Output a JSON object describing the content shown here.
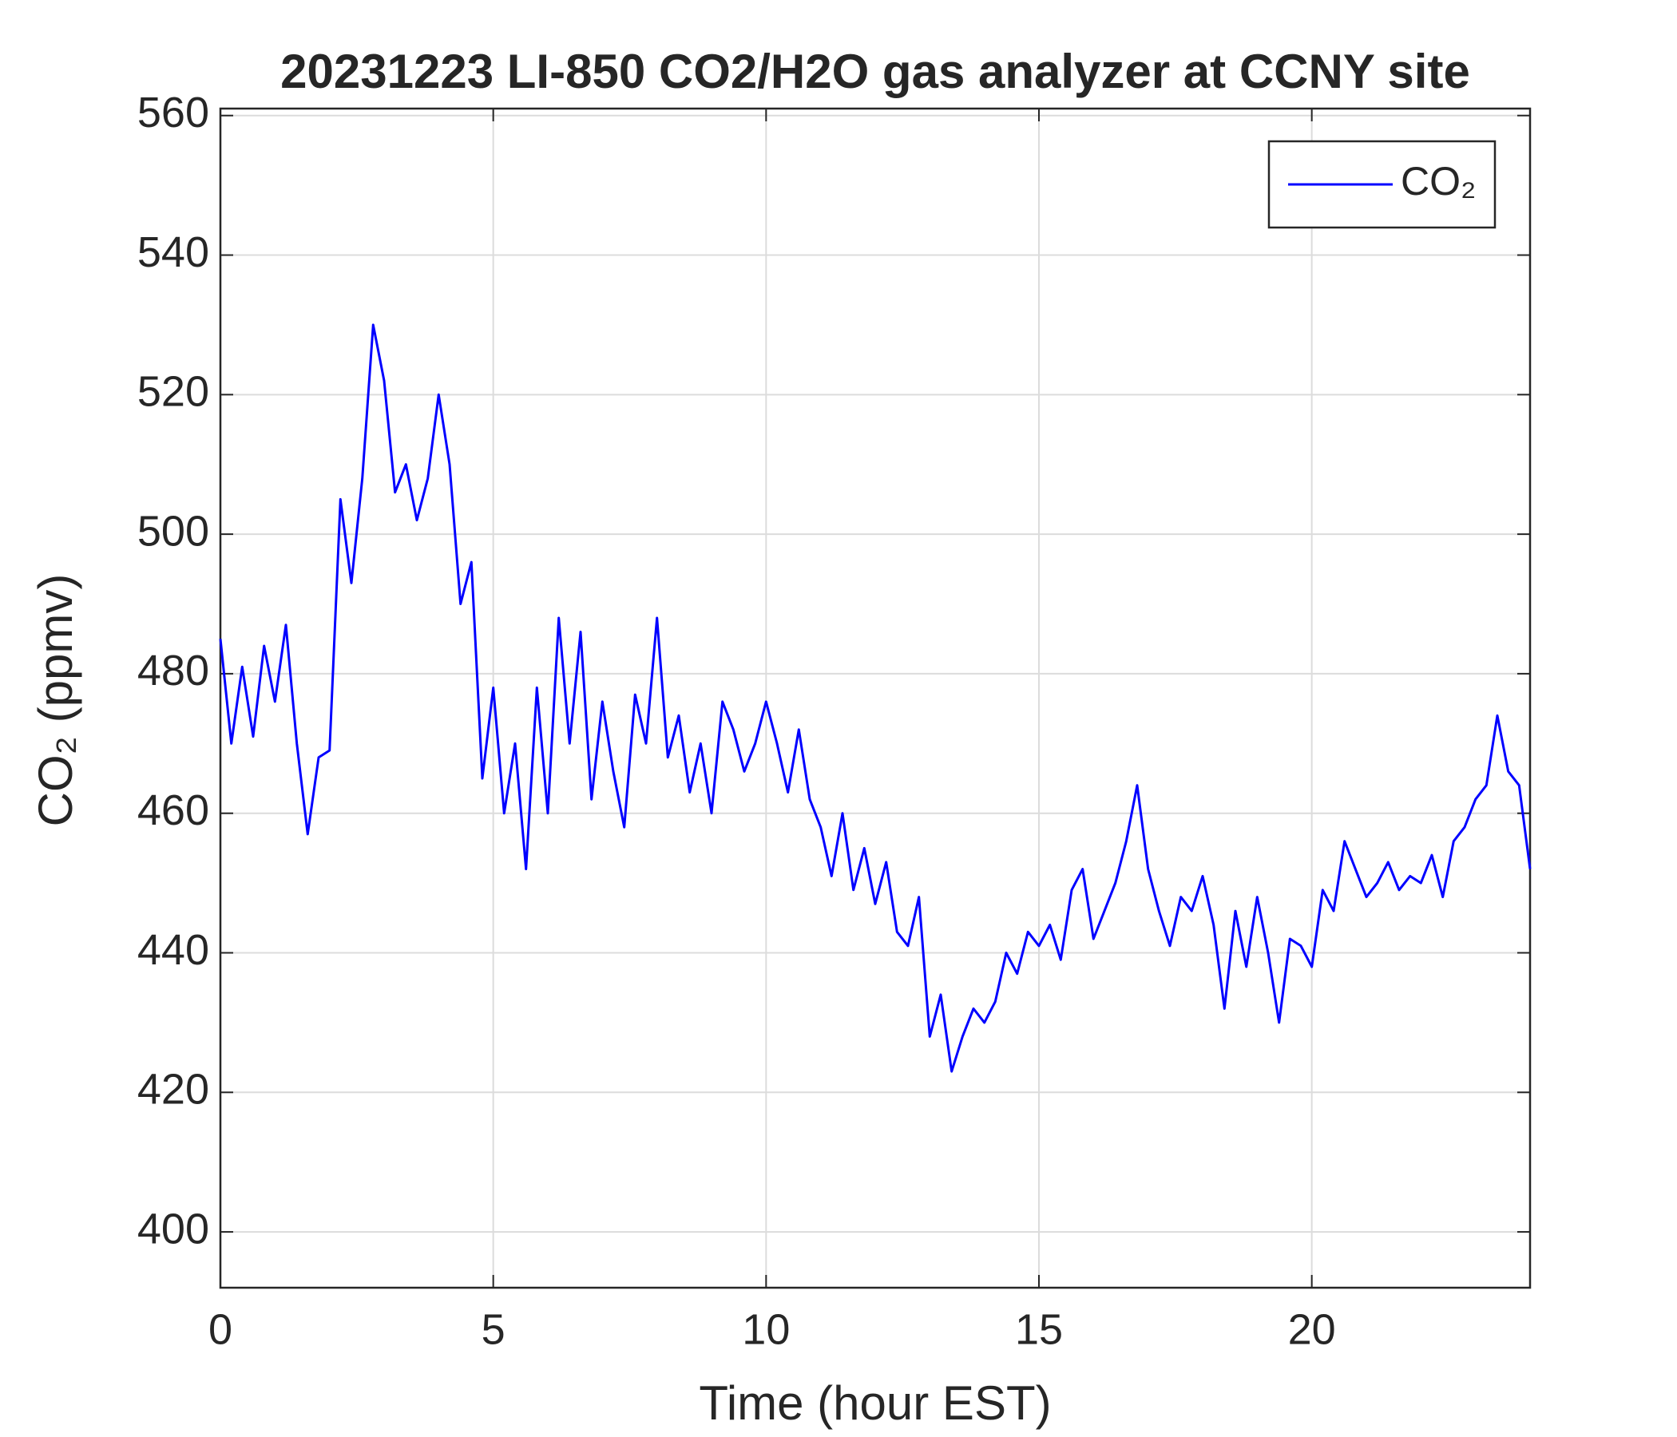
{
  "chart_data": {
    "type": "line",
    "title": "20231223 LI-850 CO2/H2O gas analyzer at CCNY site",
    "x_label": "Time (hour EST)",
    "y_label": "CO₂ (ppmv)",
    "x": [
      0,
      0.2,
      0.4,
      0.6,
      0.8,
      1,
      1.2,
      1.4,
      1.6,
      1.8,
      2,
      2.2,
      2.4,
      2.6,
      2.8,
      3,
      3.2,
      3.4,
      3.6,
      3.8,
      4,
      4.2,
      4.4,
      4.6,
      4.8,
      5,
      5.2,
      5.4,
      5.6,
      5.8,
      6,
      6.2,
      6.4,
      6.6,
      6.8,
      7,
      7.2,
      7.4,
      7.6,
      7.8,
      8,
      8.2,
      8.4,
      8.6,
      8.8,
      9,
      9.2,
      9.4,
      9.6,
      9.8,
      10,
      10.2,
      10.4,
      10.6,
      10.8,
      11,
      11.2,
      11.4,
      11.6,
      11.8,
      12,
      12.2,
      12.4,
      12.6,
      12.8,
      13,
      13.2,
      13.4,
      13.6,
      13.8,
      14,
      14.2,
      14.4,
      14.6,
      14.8,
      15,
      15.2,
      15.4,
      15.6,
      15.8,
      16,
      16.2,
      16.4,
      16.6,
      16.8,
      17,
      17.2,
      17.4,
      17.6,
      17.8,
      18,
      18.2,
      18.4,
      18.6,
      18.8,
      19,
      19.2,
      19.4,
      19.6,
      19.8,
      20,
      20.2,
      20.4,
      20.6,
      20.8,
      21,
      21.2,
      21.4,
      21.6,
      21.8,
      22,
      22.2,
      22.4,
      22.6,
      22.8,
      23,
      23.2,
      23.4,
      23.6,
      23.8,
      24
    ],
    "series": [
      {
        "name": "CO₂",
        "color": "#0000ff",
        "values": [
          485,
          470,
          481,
          471,
          484,
          476,
          487,
          470,
          457,
          468,
          469,
          505,
          493,
          508,
          530,
          522,
          506,
          510,
          502,
          508,
          520,
          510,
          490,
          496,
          465,
          478,
          460,
          470,
          452,
          478,
          460,
          488,
          470,
          486,
          462,
          476,
          466,
          458,
          477,
          470,
          488,
          468,
          474,
          463,
          470,
          460,
          476,
          472,
          466,
          470,
          476,
          470,
          463,
          472,
          462,
          458,
          451,
          460,
          449,
          455,
          447,
          453,
          443,
          441,
          448,
          428,
          434,
          423,
          428,
          432,
          430,
          433,
          440,
          437,
          443,
          441,
          444,
          439,
          449,
          452,
          442,
          446,
          450,
          456,
          464,
          452,
          446,
          441,
          448,
          446,
          451,
          444,
          432,
          446,
          438,
          448,
          440,
          430,
          442,
          441,
          438,
          449,
          446,
          456,
          452,
          448,
          450,
          453,
          449,
          451,
          450,
          454,
          448,
          456,
          458,
          462,
          464,
          474,
          466,
          464,
          452
        ]
      }
    ],
    "xlim": [
      0,
      24
    ],
    "ylim": [
      392,
      561
    ],
    "xticks": [
      0,
      5,
      10,
      15,
      20
    ],
    "yticks": [
      400,
      420,
      440,
      460,
      480,
      500,
      520,
      540,
      560
    ],
    "grid": true,
    "legend": "upper right"
  }
}
